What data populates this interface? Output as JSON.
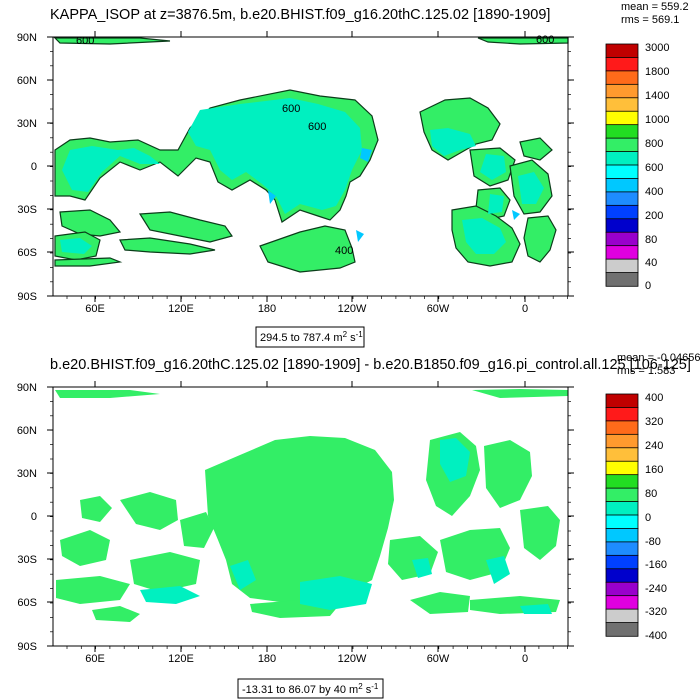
{
  "chart_data": [
    {
      "type": "map",
      "title": "KAPPA_ISOP at z=3876.5m, b.e20.BHIST.f09_g16.20thC.125.02 [1890-1909]",
      "stats": {
        "mean": "mean = 559.2",
        "rms": "rms = 569.1"
      },
      "range_label": "294.5 to 787.4 m",
      "range_unit_sup": "2",
      "range_unit_tail": " s",
      "range_unit_tail_sup": "-1",
      "x_ticks": [
        "60E",
        "120E",
        "180",
        "120W",
        "60W",
        "0"
      ],
      "y_ticks": [
        "90N",
        "60N",
        "30N",
        "0",
        "30S",
        "60S",
        "90S"
      ],
      "colorbar": {
        "labels": [
          "3000",
          "1800",
          "1400",
          "1000",
          "800",
          "600",
          "400",
          "200",
          "80",
          "40",
          "0"
        ],
        "colors": [
          "#c00000",
          "#ff1a1a",
          "#ff6b1a",
          "#ff9a2e",
          "#ffbf3a",
          "#ffff00",
          "#22dd22",
          "#33ee66",
          "#00f0c0",
          "#00ffff",
          "#00c8ff",
          "#1e8cff",
          "#0040ff",
          "#0000cc",
          "#9900cc",
          "#e000e0",
          "#cccccc",
          "#707070"
        ]
      },
      "contour_labels": [
        "600",
        "600",
        "600",
        "600",
        "400"
      ]
    },
    {
      "type": "map",
      "title": "b.e20.BHIST.f09_g16.20thC.125.02 [1890-1909] - b.e20.B1850.f09_g16.pi_control.all.125 [106-125]",
      "stats": {
        "mean": "mean = -0.04656",
        "rms": "rms = 1.583"
      },
      "range_label": "-13.31 to 86.07 by 40 m",
      "range_unit_sup": "2",
      "range_unit_tail": " s",
      "range_unit_tail_sup": "-1",
      "x_ticks": [
        "60E",
        "120E",
        "180",
        "120W",
        "60W",
        "0"
      ],
      "y_ticks": [
        "90N",
        "60N",
        "30N",
        "0",
        "30S",
        "60S",
        "90S"
      ],
      "colorbar": {
        "labels": [
          "400",
          "320",
          "240",
          "160",
          "80",
          "0",
          "-80",
          "-160",
          "-240",
          "-320",
          "-400"
        ],
        "colors": [
          "#c00000",
          "#ff1a1a",
          "#ff6b1a",
          "#ff9a2e",
          "#ffbf3a",
          "#ffff00",
          "#22dd22",
          "#33ee66",
          "#00f0c0",
          "#00ffff",
          "#00c8ff",
          "#1e8cff",
          "#0040ff",
          "#0000cc",
          "#9900cc",
          "#e000e0",
          "#cccccc",
          "#707070"
        ]
      }
    }
  ]
}
